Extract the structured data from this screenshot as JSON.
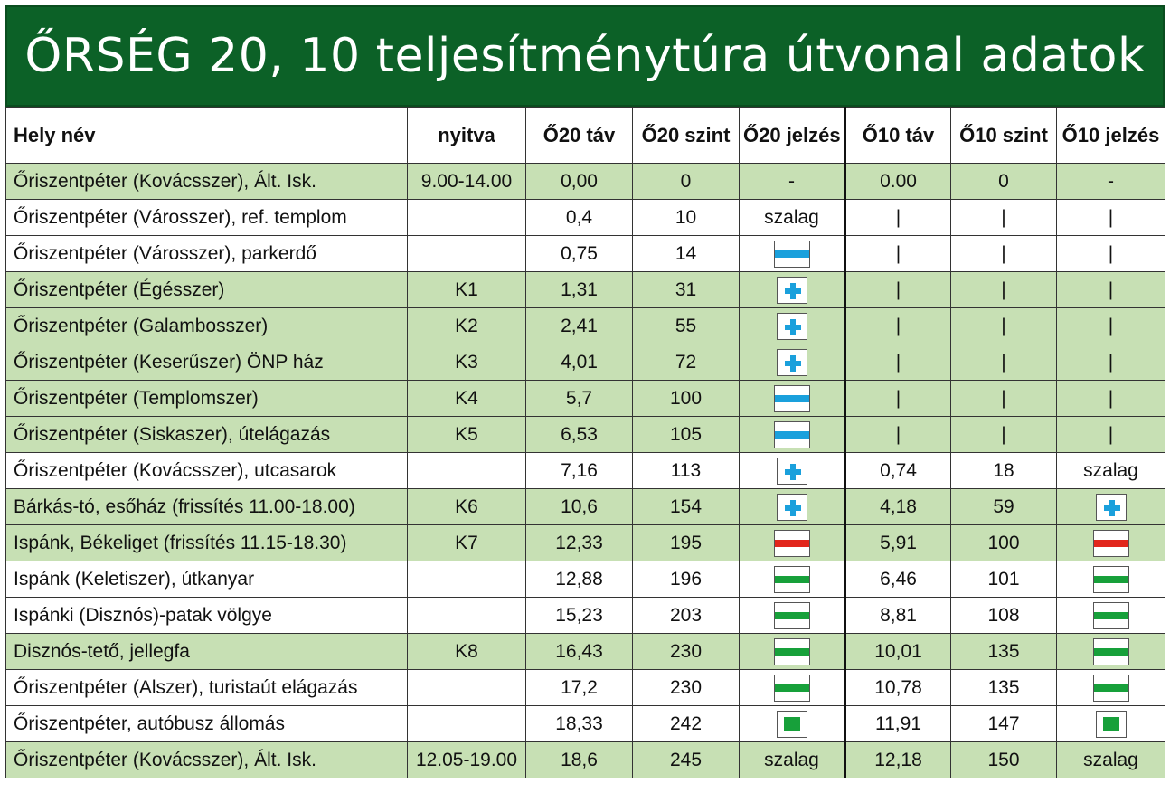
{
  "title": "ŐRSÉG 20, 10 teljesítménytúra útvonal adatok",
  "colors": {
    "header_green": "#0c6127",
    "row_highlight": "#c7e0b4",
    "blue": "#1aa0dc",
    "red": "#e2261c",
    "green": "#17a03a"
  },
  "headers": [
    "Hely név",
    "nyitva",
    "Ő20 táv",
    "Ő20 szint",
    "Ő20 jelzés",
    "Ő10 táv",
    "Ő10 szint",
    "Ő10 jelzés"
  ],
  "rows": [
    {
      "hl": true,
      "name": "Őriszentpéter (Kovácsszer), Ált. Isk.",
      "open": "9.00-14.00",
      "d20": "0,00",
      "s20": "0",
      "m20": "-",
      "d10": "0.00",
      "s10": "0",
      "m10": "-"
    },
    {
      "hl": false,
      "name": "Őriszentpéter (Városszer), ref. templom",
      "open": "",
      "d20": "0,4",
      "s20": "10",
      "m20": "szalag",
      "d10": "|",
      "s10": "|",
      "m10": "|"
    },
    {
      "hl": false,
      "name": "Őriszentpéter (Városszer), parkerdő",
      "open": "",
      "d20": "0,75",
      "s20": "14",
      "m20": "blue-stripe-icon",
      "d10": "|",
      "s10": "|",
      "m10": "|"
    },
    {
      "hl": true,
      "name": "Őriszentpéter (Égésszer)",
      "open": "K1",
      "d20": "1,31",
      "s20": "31",
      "m20": "blue-cross-icon",
      "d10": "|",
      "s10": "|",
      "m10": "|"
    },
    {
      "hl": true,
      "name": "Őriszentpéter (Galambosszer)",
      "open": "K2",
      "d20": "2,41",
      "s20": "55",
      "m20": "blue-cross-icon",
      "d10": "|",
      "s10": "|",
      "m10": "|"
    },
    {
      "hl": true,
      "name": "Őriszentpéter (Keserűszer) ÖNP ház",
      "open": "K3",
      "d20": "4,01",
      "s20": "72",
      "m20": "blue-cross-icon",
      "d10": "|",
      "s10": "|",
      "m10": "|"
    },
    {
      "hl": true,
      "name": "Őriszentpéter (Templomszer)",
      "open": "K4",
      "d20": "5,7",
      "s20": "100",
      "m20": "blue-stripe-icon",
      "d10": "|",
      "s10": "|",
      "m10": "|"
    },
    {
      "hl": true,
      "name": "Őriszentpéter (Siskaszer), útelágazás",
      "open": "K5",
      "d20": "6,53",
      "s20": "105",
      "m20": "blue-stripe-icon",
      "d10": "|",
      "s10": "|",
      "m10": "|"
    },
    {
      "hl": false,
      "name": "Őriszentpéter (Kovácsszer), utcasarok",
      "open": "",
      "d20": "7,16",
      "s20": "113",
      "m20": "blue-cross-icon",
      "d10": "0,74",
      "s10": "18",
      "m10": "szalag"
    },
    {
      "hl": true,
      "name": "Bárkás-tó, esőház (frissítés 11.00-18.00)",
      "open": "K6",
      "d20": "10,6",
      "s20": "154",
      "m20": "blue-cross-icon",
      "d10": "4,18",
      "s10": "59",
      "m10": "blue-cross-icon"
    },
    {
      "hl": true,
      "name": "Ispánk, Békeliget (frissítés 11.15-18.30)",
      "open": "K7",
      "d20": "12,33",
      "s20": "195",
      "m20": "red-stripe-icon",
      "d10": "5,91",
      "s10": "100",
      "m10": "red-stripe-icon"
    },
    {
      "hl": false,
      "name": "Ispánk (Keletiszer), útkanyar",
      "open": "",
      "d20": "12,88",
      "s20": "196",
      "m20": "green-stripe-icon",
      "d10": "6,46",
      "s10": "101",
      "m10": "green-stripe-icon"
    },
    {
      "hl": false,
      "name": "Ispánki (Disznós)-patak völgye",
      "open": "",
      "d20": "15,23",
      "s20": "203",
      "m20": "green-stripe-icon",
      "d10": "8,81",
      "s10": "108",
      "m10": "green-stripe-icon"
    },
    {
      "hl": true,
      "name": "Disznós-tető, jellegfa",
      "open": "K8",
      "d20": "16,43",
      "s20": "230",
      "m20": "green-stripe-icon",
      "d10": "10,01",
      "s10": "135",
      "m10": "green-stripe-icon"
    },
    {
      "hl": false,
      "name": "Őriszentpéter (Alszer), turistaút elágazás",
      "open": "",
      "d20": "17,2",
      "s20": "230",
      "m20": "green-stripe-icon",
      "d10": "10,78",
      "s10": "135",
      "m10": "green-stripe-icon"
    },
    {
      "hl": false,
      "name": "Őriszentpéter, autóbusz állomás",
      "open": "",
      "d20": "18,33",
      "s20": "242",
      "m20": "green-square-icon",
      "d10": "11,91",
      "s10": "147",
      "m10": "green-square-icon"
    },
    {
      "hl": true,
      "name": "Őriszentpéter (Kovácsszer), Ált. Isk.",
      "open": "12.05-19.00",
      "d20": "18,6",
      "s20": "245",
      "m20": "szalag",
      "d10": "12,18",
      "s10": "150",
      "m10": "szalag"
    }
  ]
}
